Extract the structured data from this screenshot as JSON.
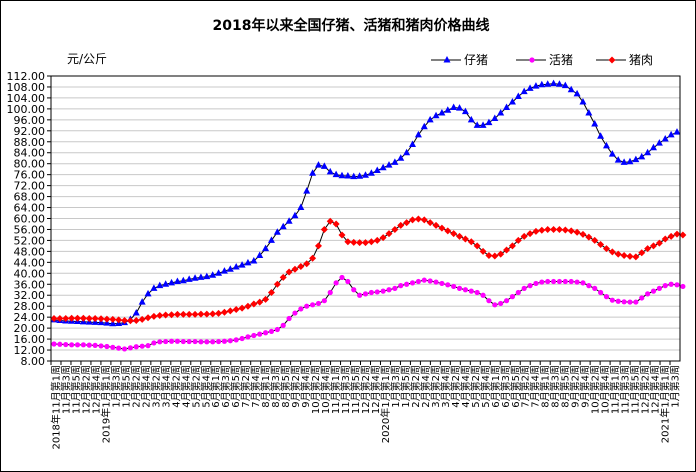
{
  "chart_data": {
    "type": "line",
    "title": "2018年以来全国仔猪、活猪和猪肉价格曲线",
    "ylabel": "元/公斤",
    "ylim": [
      8,
      112
    ],
    "ystep": 4,
    "ytick_labels": [
      "8.00",
      "12.00",
      "16.00",
      "20.00",
      "24.00",
      "28.00",
      "32.00",
      "36.00",
      "40.00",
      "44.00",
      "48.00",
      "52.00",
      "56.00",
      "60.00",
      "64.00",
      "68.00",
      "72.00",
      "76.00",
      "80.00",
      "84.00",
      "88.00",
      "92.00",
      "96.00",
      "100.00",
      "104.00",
      "108.00",
      "112.00"
    ],
    "x_tick_labels": [
      "2018年11月第1周",
      "11月第3周",
      "11月第5周",
      "12月第2周",
      "12月第4周",
      "2019年1月第1周",
      "1月第3周",
      "1月第5周",
      "2月第2周",
      "2月第4周",
      "3月第2周",
      "3月第4周",
      "4月第2周",
      "4月第4周",
      "5月第2周",
      "5月第4周",
      "6月第1周",
      "6月第3周",
      "6月第5周",
      "7月第2周",
      "7月第4周",
      "8月第1周",
      "8月第3周",
      "8月第5周",
      "9月第2周",
      "9月第4周",
      "10月第2周",
      "10月第4周",
      "11月第1周",
      "11月第3周",
      "11月第5周",
      "12月第2周",
      "12月第4周",
      "2020年1月第1周",
      "1月第3周",
      "1月第5周",
      "2月第2周",
      "2月第4周",
      "3月第2周",
      "3月第4周",
      "4月第2周",
      "4月第4周",
      "5月第2周",
      "5月第4周",
      "6月第1周",
      "6月第3周",
      "6月第5周",
      "7月第2周",
      "7月第4周",
      "8月第1周",
      "8月第3周",
      "8月第5周",
      "9月第2周",
      "9月第4周",
      "10月第2周",
      "10月第4周",
      "11月第1周",
      "11月第3周",
      "11月第5周",
      "12月第2周",
      "12月第4周",
      "2021年1月第1周",
      "1月第3周"
    ],
    "legend_position": "top-right",
    "grid": true,
    "series": [
      {
        "name": "仔猪",
        "color": "#0000ff",
        "marker": "triangle",
        "values": [
          23.0,
          22.8,
          22.6,
          22.5,
          22.4,
          22.3,
          22.2,
          22.1,
          22.0,
          21.8,
          21.6,
          21.7,
          22.0,
          23.2,
          25.5,
          29.5,
          32.5,
          34.5,
          35.5,
          36.0,
          36.5,
          37.0,
          37.3,
          37.8,
          38.2,
          38.5,
          38.8,
          39.3,
          40.0,
          40.8,
          41.5,
          42.3,
          43.0,
          43.8,
          44.5,
          46.5,
          49.0,
          52.0,
          55.0,
          57.0,
          59.0,
          61.0,
          64.0,
          70.0,
          76.5,
          79.5,
          79.0,
          77.0,
          76.0,
          75.6,
          75.5,
          75.3,
          75.4,
          75.8,
          76.5,
          77.5,
          78.5,
          79.5,
          80.5,
          82.0,
          84.0,
          87.0,
          90.5,
          93.5,
          96.0,
          97.5,
          98.5,
          99.5,
          100.5,
          100.3,
          99.0,
          96.0,
          94.0,
          94.0,
          95.0,
          96.5,
          98.5,
          100.5,
          102.5,
          104.5,
          106.3,
          107.5,
          108.3,
          108.8,
          109.0,
          109.2,
          109.0,
          108.5,
          107.0,
          105.5,
          102.5,
          98.5,
          94.5,
          90.0,
          86.5,
          83.5,
          81.3,
          80.5,
          80.7,
          81.5,
          82.5,
          84.0,
          85.8,
          87.5,
          89.0,
          90.5,
          91.5
        ]
      },
      {
        "name": "活猪",
        "color": "#ff00ff",
        "marker": "circle",
        "values": [
          14.2,
          14.1,
          14.0,
          13.9,
          13.9,
          13.9,
          13.8,
          13.7,
          13.5,
          13.3,
          13.0,
          12.7,
          12.4,
          12.8,
          13.2,
          13.4,
          13.6,
          14.6,
          15.0,
          15.1,
          15.2,
          15.2,
          15.1,
          15.1,
          15.1,
          15.0,
          15.0,
          15.0,
          15.1,
          15.2,
          15.4,
          15.7,
          16.2,
          16.8,
          17.3,
          17.8,
          18.3,
          18.8,
          19.5,
          21.0,
          23.5,
          25.5,
          27.0,
          28.0,
          28.5,
          29.0,
          30.0,
          33.0,
          36.5,
          38.5,
          37.0,
          34.0,
          32.0,
          32.5,
          33.0,
          33.2,
          33.5,
          34.0,
          34.5,
          35.5,
          36.0,
          36.5,
          37.0,
          37.5,
          37.2,
          36.8,
          36.3,
          35.8,
          35.2,
          34.5,
          34.0,
          33.5,
          33.0,
          32.0,
          30.0,
          28.5,
          29.0,
          30.0,
          31.5,
          33.0,
          34.5,
          35.5,
          36.3,
          36.8,
          37.0,
          37.0,
          37.0,
          37.0,
          37.0,
          36.8,
          36.5,
          35.5,
          34.5,
          33.0,
          31.5,
          30.2,
          29.8,
          29.6,
          29.5,
          29.5,
          31.0,
          32.5,
          33.5,
          34.5,
          35.5,
          36.0,
          35.8,
          35.2
        ]
      },
      {
        "name": "猪肉",
        "color": "#ff0000",
        "marker": "diamond",
        "values": [
          23.5,
          23.5,
          23.5,
          23.6,
          23.6,
          23.6,
          23.5,
          23.5,
          23.4,
          23.3,
          23.2,
          23.0,
          22.8,
          22.7,
          22.8,
          23.2,
          23.8,
          24.3,
          24.6,
          24.8,
          24.9,
          25.0,
          25.0,
          25.0,
          25.0,
          25.1,
          25.1,
          25.2,
          25.4,
          25.8,
          26.3,
          26.8,
          27.3,
          28.0,
          28.8,
          29.5,
          30.5,
          33.0,
          36.0,
          38.5,
          40.5,
          41.5,
          42.5,
          43.5,
          45.5,
          50.0,
          56.0,
          59.0,
          58.0,
          54.0,
          51.5,
          51.3,
          51.2,
          51.2,
          51.5,
          52.0,
          53.0,
          54.5,
          56.0,
          57.5,
          58.5,
          59.5,
          59.8,
          59.5,
          58.5,
          57.5,
          56.5,
          55.5,
          54.5,
          53.5,
          52.5,
          51.5,
          50.0,
          48.0,
          46.5,
          46.3,
          47.0,
          48.5,
          50.0,
          52.0,
          53.5,
          54.5,
          55.3,
          55.7,
          56.0,
          56.0,
          56.0,
          55.8,
          55.5,
          55.0,
          54.2,
          53.2,
          52.0,
          50.5,
          49.0,
          47.8,
          47.0,
          46.5,
          46.2,
          46.0,
          47.5,
          49.0,
          50.0,
          51.0,
          52.5,
          53.5,
          54.3,
          54.0
        ]
      }
    ]
  }
}
